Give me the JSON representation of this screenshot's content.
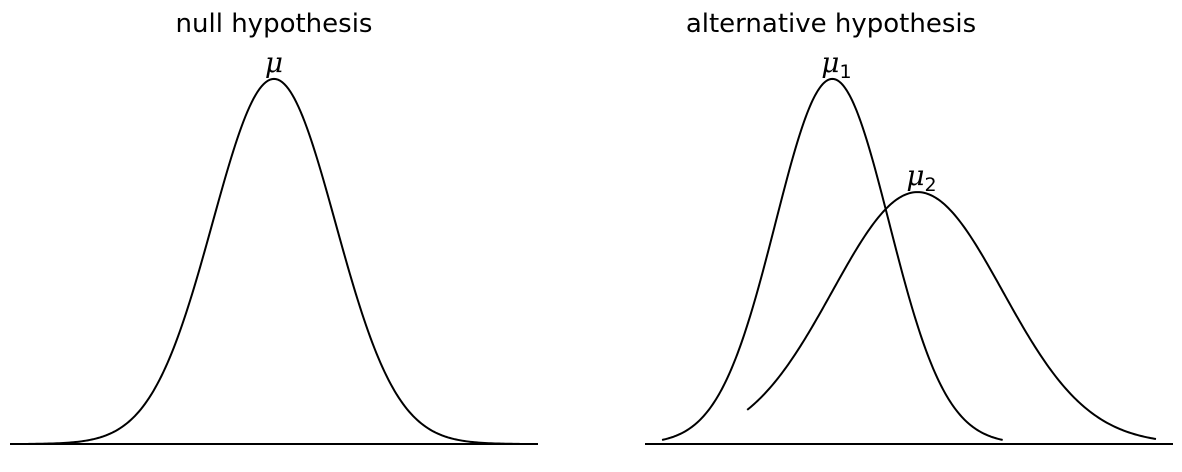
{
  "chart_data": [
    {
      "type": "line",
      "title": "null hypothesis",
      "xlabel": "",
      "ylabel": "",
      "xlim": [
        -4.3,
        4.3
      ],
      "ylim": [
        0,
        1.06
      ],
      "grid": false,
      "axes_visible": "bottom spine only",
      "series": [
        {
          "label": "μ",
          "subscript": "",
          "mean": 0,
          "sd": 1,
          "peak": 1.0,
          "x_range": [
            -4,
            4
          ]
        }
      ]
    },
    {
      "type": "line",
      "title": "alternative hypothesis",
      "xlabel": "",
      "ylabel": "",
      "xlim": [
        -3.3,
        6.0
      ],
      "ylim": [
        0,
        1.06
      ],
      "grid": false,
      "axes_visible": "bottom spine only",
      "series": [
        {
          "label": "μ",
          "subscript": "1",
          "mean": 0,
          "sd": 1,
          "peak": 1.0,
          "x_range": [
            -3,
            3
          ]
        },
        {
          "label": "μ",
          "subscript": "2",
          "mean": 1.5,
          "sd": 1.5,
          "peak": 0.69,
          "x_range": [
            -1.5,
            5.7
          ]
        }
      ]
    }
  ]
}
